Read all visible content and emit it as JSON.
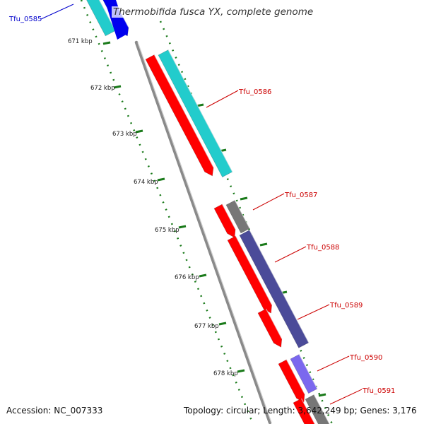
{
  "title": "Thermobifida fusca YX, complete genome",
  "accession_text": "Accession: NC_007333",
  "topology_text": "Topology: circular; Length: 3,642,249 bp; Genes: 3,176",
  "colors": {
    "backbone": "#8a8a8a",
    "tick": "#1a7a1a",
    "label_blue": "#0000cc",
    "label_red": "#cc0000",
    "cds_red": "#ff0000",
    "cyan": "#22cccc",
    "blue": "#0000ee",
    "slate": "#4b4b99",
    "lavender": "#7b68ee",
    "gray": "#777777"
  },
  "scale_ticks": [
    {
      "label": "671 kbp"
    },
    {
      "label": "672 kbp"
    },
    {
      "label": "673 kbp"
    },
    {
      "label": "674 kbp"
    },
    {
      "label": "675 kbp"
    },
    {
      "label": "676 kbp"
    },
    {
      "label": "677 kbp"
    },
    {
      "label": "678 kbp"
    }
  ],
  "genes": [
    {
      "name": "Tfu_0585",
      "label_color": "blue"
    },
    {
      "name": "Tfu_0586",
      "label_color": "red"
    },
    {
      "name": "Tfu_0587",
      "label_color": "red"
    },
    {
      "name": "Tfu_0588",
      "label_color": "red"
    },
    {
      "name": "Tfu_0589",
      "label_color": "red"
    },
    {
      "name": "Tfu_0590",
      "label_color": "red"
    },
    {
      "name": "Tfu_0591",
      "label_color": "red"
    }
  ]
}
